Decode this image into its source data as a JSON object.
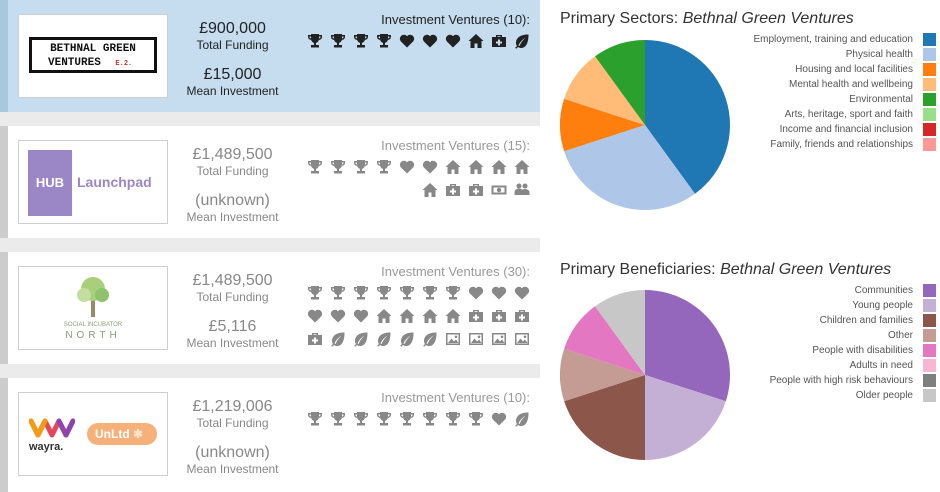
{
  "cards": [
    {
      "id": "bethnal",
      "funding": "£900,000",
      "funding_label": "Total Funding",
      "mean": "£15,000",
      "mean_label": "Mean Investment",
      "ventures_label": "Investment Ventures (10):",
      "logo": {
        "line1": "BETHNAL GREEN",
        "line2": "VENTURES",
        "tag": "E.2."
      },
      "icons": [
        "trophy-icon",
        "trophy-icon",
        "trophy-icon",
        "trophy-icon",
        "heart-icon",
        "heart-icon",
        "heart-icon",
        "house-icon",
        "medkit-icon",
        "leaf-icon"
      ]
    },
    {
      "id": "hub",
      "funding": "£1,489,500",
      "funding_label": "Total Funding",
      "mean": "(unknown)",
      "mean_label": "Mean Investment",
      "ventures_label": "Investment Ventures (15):",
      "logo": {
        "badge": "HUB",
        "name": "Launchpad"
      },
      "icons": [
        "trophy-icon",
        "trophy-icon",
        "trophy-icon",
        "trophy-icon",
        "heart-icon",
        "heart-icon",
        "house-icon",
        "house-icon",
        "house-icon",
        "house-icon",
        "house-icon",
        "medkit-icon",
        "medkit-icon",
        "money-icon",
        "group-icon"
      ]
    },
    {
      "id": "north",
      "funding": "£1,489,500",
      "funding_label": "Total Funding",
      "mean": "£5,116",
      "mean_label": "Mean Investment",
      "ventures_label": "Investment Ventures (30):",
      "logo": {
        "line1": "SOCIAL INCUBATOR",
        "line2": "NORTH"
      },
      "icons": [
        "trophy-icon",
        "trophy-icon",
        "trophy-icon",
        "trophy-icon",
        "trophy-icon",
        "trophy-icon",
        "trophy-icon",
        "heart-icon",
        "heart-icon",
        "heart-icon",
        "heart-icon",
        "heart-icon",
        "heart-icon",
        "house-icon",
        "house-icon",
        "house-icon",
        "house-icon",
        "medkit-icon",
        "medkit-icon",
        "medkit-icon",
        "medkit-icon",
        "leaf-icon",
        "leaf-icon",
        "leaf-icon",
        "leaf-icon",
        "leaf-icon",
        "image-icon",
        "image-icon",
        "image-icon",
        "image-icon"
      ]
    },
    {
      "id": "wayra",
      "funding": "£1,219,006",
      "funding_label": "Total Funding",
      "mean": "(unknown)",
      "mean_label": "Mean Investment",
      "ventures_label": "Investment Ventures (10):",
      "logo": {
        "name1": "wayra.",
        "name2": "UnLtd"
      },
      "icons": [
        "trophy-icon",
        "trophy-icon",
        "trophy-icon",
        "trophy-icon",
        "trophy-icon",
        "trophy-icon",
        "trophy-icon",
        "trophy-icon",
        "heart-icon",
        "leaf-icon"
      ]
    }
  ],
  "sectors": {
    "title_prefix": "Primary Sectors:",
    "title_name": "Bethnal Green Ventures",
    "items": [
      {
        "label": "Employment, training and education",
        "color": "#1f77b4",
        "value": 40
      },
      {
        "label": "Physical health",
        "color": "#aec7e8",
        "value": 30
      },
      {
        "label": "Housing and local facilities",
        "color": "#ff7f0e",
        "value": 10
      },
      {
        "label": "Mental health and wellbeing",
        "color": "#ffbb78",
        "value": 10
      },
      {
        "label": "Environmental",
        "color": "#2ca02c",
        "value": 10
      },
      {
        "label": "Arts, heritage, sport and faith",
        "color": "#98df8a",
        "value": 0
      },
      {
        "label": "Income and financial inclusion",
        "color": "#d62728",
        "value": 0
      },
      {
        "label": "Family, friends and relationships",
        "color": "#ff9896",
        "value": 0
      }
    ]
  },
  "beneficiaries": {
    "title_prefix": "Primary Beneficiaries:",
    "title_name": "Bethnal Green Ventures",
    "items": [
      {
        "label": "Communities",
        "color": "#9467bd",
        "value": 30
      },
      {
        "label": "Young people",
        "color": "#c5b0d5",
        "value": 20
      },
      {
        "label": "Children and families",
        "color": "#8c564b",
        "value": 20
      },
      {
        "label": "Other",
        "color": "#c49c94",
        "value": 10
      },
      {
        "label": "People with disabilities",
        "color": "#e377c2",
        "value": 10
      },
      {
        "label": "Adults in need",
        "color": "#f7b6d2",
        "value": 0
      },
      {
        "label": "People with high risk behaviours",
        "color": "#7f7f7f",
        "value": 0
      },
      {
        "label": "Older people",
        "color": "#c7c7c7",
        "value": 10
      }
    ]
  }
}
